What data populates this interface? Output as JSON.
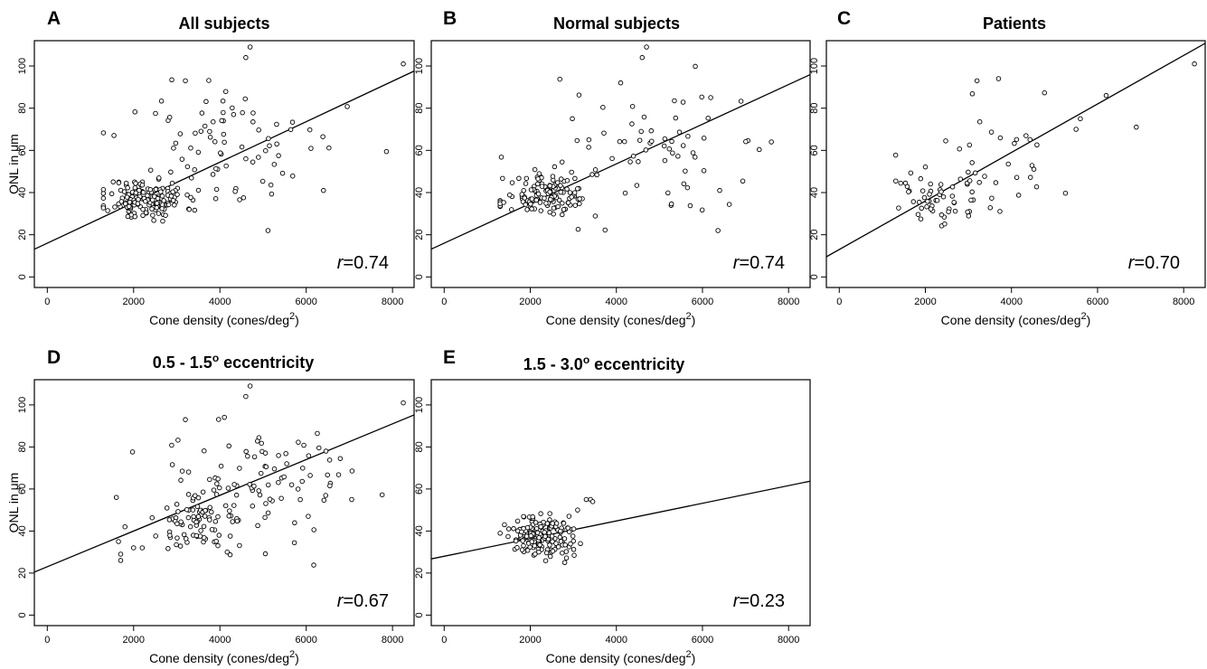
{
  "chart_data": [
    {
      "type": "scatter",
      "panel": "A",
      "title": "All subjects",
      "xlabel": "Cone density (cones/deg",
      "xlabel_sup": "2",
      "xlabel_end": ")",
      "ylabel": "ONL in μm",
      "xlim": [
        -300,
        8500
      ],
      "ylim": [
        -5,
        112
      ],
      "xticks": [
        0,
        2000,
        4000,
        6000,
        8000
      ],
      "yticks": [
        0,
        20,
        40,
        60,
        80,
        100
      ],
      "correlation_label": "=0.74",
      "fit": {
        "intercept": 16,
        "slope": 0.0096
      },
      "clusters": [
        {
          "n": 160,
          "xm": 2300,
          "xs": 450,
          "ym": 37,
          "ys": 5,
          "seed": 11
        },
        {
          "n": 80,
          "xm": 4300,
          "xs": 1250,
          "ym": 62,
          "ys": 16,
          "seed": 12
        }
      ],
      "points": [
        [
          4700,
          109
        ],
        [
          4600,
          104
        ],
        [
          8250,
          101
        ],
        [
          3200,
          93
        ],
        [
          6400,
          41
        ]
      ]
    },
    {
      "type": "scatter",
      "panel": "B",
      "title": "Normal subjects",
      "xlabel": "Cone density (cones/deg",
      "xlabel_sup": "2",
      "xlabel_end": ")",
      "ylabel": "",
      "xlim": [
        -300,
        8500
      ],
      "ylim": [
        -5,
        112
      ],
      "xticks": [
        0,
        2000,
        4000,
        6000,
        8000
      ],
      "yticks": [
        0,
        20,
        40,
        60,
        80,
        100
      ],
      "correlation_label": "=0.74",
      "fit": {
        "intercept": 16,
        "slope": 0.0094
      },
      "clusters": [
        {
          "n": 130,
          "xm": 2400,
          "xs": 500,
          "ym": 38,
          "ys": 5,
          "seed": 21
        },
        {
          "n": 70,
          "xm": 4600,
          "xs": 1100,
          "ym": 62,
          "ys": 15,
          "seed": 22
        }
      ],
      "points": [
        [
          4700,
          109
        ],
        [
          4600,
          104
        ],
        [
          4100,
          92
        ],
        [
          7600,
          64
        ],
        [
          6400,
          41
        ]
      ]
    },
    {
      "type": "scatter",
      "panel": "C",
      "title": "Patients",
      "xlabel": "Cone density (cones/deg",
      "xlabel_sup": "2",
      "xlabel_end": ")",
      "ylabel": "",
      "xlim": [
        -300,
        8500
      ],
      "ylim": [
        -5,
        112
      ],
      "xticks": [
        0,
        2000,
        4000,
        6000,
        8000
      ],
      "yticks": [
        0,
        20,
        40,
        60,
        80,
        100
      ],
      "correlation_label": "=0.70",
      "fit": {
        "intercept": 13,
        "slope": 0.0115
      },
      "clusters": [
        {
          "n": 55,
          "xm": 2200,
          "xs": 550,
          "ym": 37,
          "ys": 7,
          "seed": 31
        },
        {
          "n": 30,
          "xm": 3800,
          "xs": 900,
          "ym": 58,
          "ys": 15,
          "seed": 32
        }
      ],
      "points": [
        [
          8250,
          101
        ],
        [
          6900,
          71
        ],
        [
          6200,
          86
        ],
        [
          5500,
          70
        ],
        [
          5600,
          75
        ],
        [
          3200,
          93
        ],
        [
          3700,
          94
        ]
      ]
    },
    {
      "type": "scatter",
      "panel": "D",
      "title": "0.5 - 1.5",
      "title_sup": "o",
      "title_end": " eccentricity",
      "xlabel": "Cone density (cones/deg",
      "xlabel_sup": "2",
      "xlabel_end": ")",
      "ylabel": "ONL in μm",
      "xlim": [
        -300,
        8500
      ],
      "ylim": [
        -5,
        112
      ],
      "xticks": [
        0,
        2000,
        4000,
        6000,
        8000
      ],
      "yticks": [
        0,
        20,
        40,
        60,
        80,
        100
      ],
      "correlation_label": "=0.67",
      "fit": {
        "intercept": 23,
        "slope": 0.0085
      },
      "clusters": [
        {
          "n": 75,
          "xm": 3600,
          "xs": 500,
          "ym": 44,
          "ys": 6,
          "seed": 41
        },
        {
          "n": 95,
          "xm": 4800,
          "xs": 1200,
          "ym": 64,
          "ys": 15,
          "seed": 42
        }
      ],
      "points": [
        [
          1600,
          56
        ],
        [
          1650,
          35
        ],
        [
          1700,
          26
        ],
        [
          1700,
          29
        ],
        [
          1800,
          42
        ],
        [
          2000,
          32
        ],
        [
          2200,
          32
        ],
        [
          4700,
          109
        ],
        [
          4600,
          104
        ],
        [
          8250,
          101
        ],
        [
          3200,
          93
        ]
      ]
    },
    {
      "type": "scatter",
      "panel": "E",
      "title": "1.5 - 3.0",
      "title_sup": "o",
      "title_end": " eccentricity",
      "xlabel": "Cone density (cones/deg",
      "xlabel_sup": "2",
      "xlabel_end": ")",
      "ylabel": "",
      "xlim": [
        -300,
        8500
      ],
      "ylim": [
        -5,
        112
      ],
      "xticks": [
        0,
        2000,
        4000,
        6000,
        8000
      ],
      "yticks": [
        0,
        20,
        40,
        60,
        80,
        100
      ],
      "correlation_label": "=0.23",
      "fit": {
        "intercept": 28,
        "slope": 0.0042
      },
      "clusters": [
        {
          "n": 170,
          "xm": 2250,
          "xs": 380,
          "ym": 37.5,
          "ys": 5,
          "seed": 51
        }
      ],
      "points": [
        [
          3400,
          55
        ],
        [
          3300,
          55
        ],
        [
          3450,
          54
        ],
        [
          1400,
          43
        ],
        [
          1500,
          41
        ],
        [
          2800,
          25
        ],
        [
          3100,
          50
        ],
        [
          2900,
          47
        ]
      ]
    }
  ]
}
